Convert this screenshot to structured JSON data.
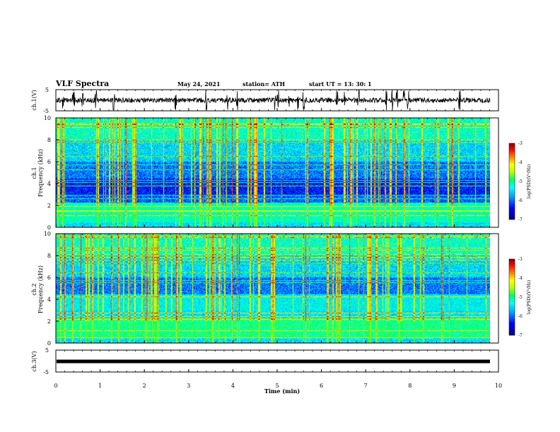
{
  "header": {
    "title": "VLF Spectra",
    "date": "May 24, 2021",
    "station": "station= ATH",
    "start": "start  UT =   13: 30: 1"
  },
  "chart_data": [
    {
      "type": "line",
      "panel": "channel-1-waveform",
      "ylabel": "ch.1(V)",
      "ylim": [
        -5,
        5
      ],
      "yticks": [
        "5",
        "-5"
      ],
      "xlim": [
        0,
        10
      ]
    },
    {
      "type": "heatmap",
      "panel": "channel-1-spectrogram",
      "ylabel_line1": "ch.1",
      "ylabel_line2": "Frequency (kHz)",
      "ylim": [
        0,
        10
      ],
      "yticks": [
        "0",
        "2",
        "4",
        "6",
        "8",
        "10"
      ],
      "xlim": [
        0,
        10
      ],
      "colorbar": {
        "label": "log(PSD)(V²/Hz)",
        "range": [
          -7,
          -3
        ],
        "ticks": [
          "-3",
          "-4",
          "-5",
          "-6",
          "-7"
        ]
      }
    },
    {
      "type": "heatmap",
      "panel": "channel-2-spectrogram",
      "ylabel_line1": "ch.2",
      "ylabel_line2": "Frequency (kHz)",
      "ylim": [
        0,
        10
      ],
      "yticks": [
        "0",
        "2",
        "4",
        "6",
        "8",
        "10"
      ],
      "xlim": [
        0,
        10
      ],
      "colorbar": {
        "label": "log(PSD)(V²/Hz)",
        "range": [
          -7,
          -3
        ],
        "ticks": [
          "-3",
          "-4",
          "-5",
          "-6",
          "-7"
        ]
      }
    },
    {
      "type": "line",
      "panel": "channel-3-waveform",
      "ylabel": "ch.3(V)",
      "ylim": [
        -5,
        5
      ],
      "yticks": [
        "5",
        "-5"
      ],
      "xlim": [
        0,
        10
      ],
      "xlabel": "Time  (min)",
      "xticks": [
        "0",
        "1",
        "2",
        "3",
        "4",
        "5",
        "6",
        "7",
        "8",
        "9",
        "10"
      ]
    }
  ],
  "colors": {
    "colormap": [
      "#000080",
      "#0000ff",
      "#00a0ff",
      "#00ffff",
      "#00ff60",
      "#b0ff00",
      "#ffff00",
      "#ff8000",
      "#ff0000",
      "#800000"
    ],
    "trace": "#000000",
    "frame": "#000000"
  }
}
